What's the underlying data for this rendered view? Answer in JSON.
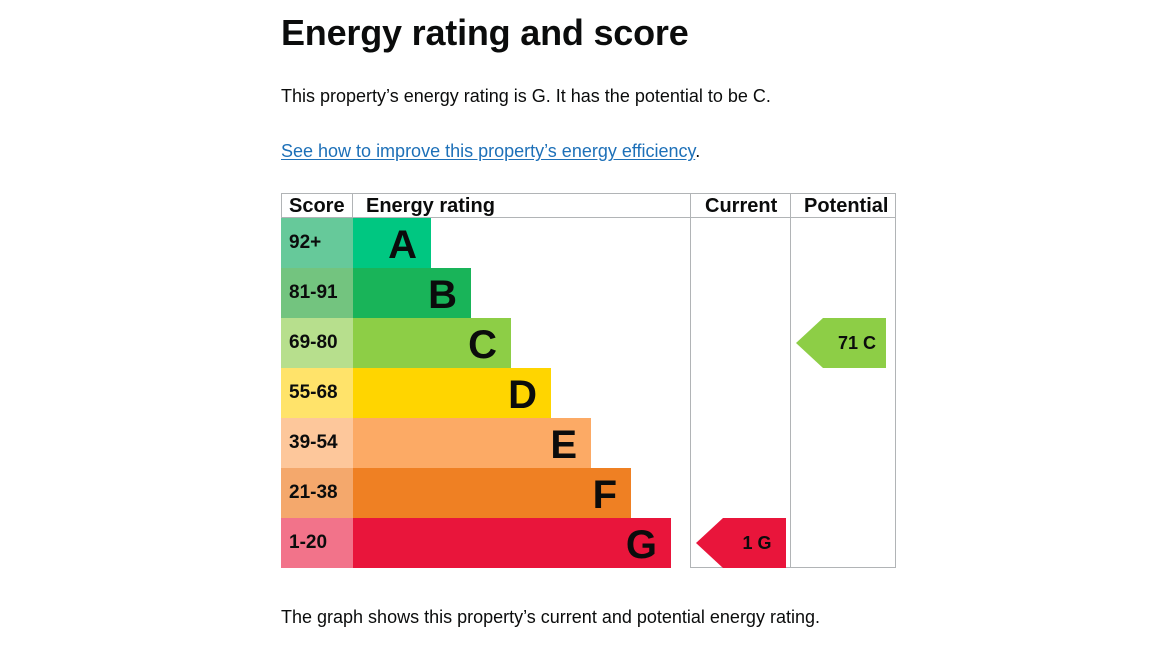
{
  "title": "Energy rating and score",
  "summary": "This property’s energy rating is G. It has the potential to be C.",
  "improve_link": "See how to improve this property’s energy efficiency",
  "improve_suffix": ".",
  "caption": "The graph shows this property’s current and potential energy rating.",
  "chart_data": {
    "type": "bar",
    "headers": {
      "score": "Score",
      "rating": "Energy rating",
      "current": "Current",
      "potential": "Potential"
    },
    "bands": [
      {
        "letter": "A",
        "score_range": "92+",
        "color": "#008054",
        "score_color": "#66c99a",
        "bar_color": "#00c781"
      },
      {
        "letter": "B",
        "score_range": "81-91",
        "color": "#19b459",
        "score_color": "#73c47f",
        "bar_color": "#19b459"
      },
      {
        "letter": "C",
        "score_range": "69-80",
        "color": "#8dce46",
        "score_color": "#b7df8d",
        "bar_color": "#8dce46"
      },
      {
        "letter": "D",
        "score_range": "55-68",
        "color": "#ffd500",
        "score_color": "#ffe36a",
        "bar_color": "#ffd500"
      },
      {
        "letter": "E",
        "score_range": "39-54",
        "color": "#fcaa65",
        "score_color": "#fdc79b",
        "bar_color": "#fcaa65"
      },
      {
        "letter": "F",
        "score_range": "21-38",
        "color": "#ef8023",
        "score_color": "#f4a86c",
        "bar_color": "#ef8023"
      },
      {
        "letter": "G",
        "score_range": "1-20",
        "color": "#e9153b",
        "score_color": "#f2738a",
        "bar_color": "#e9153b"
      }
    ],
    "current": {
      "score": 1,
      "band": "G",
      "label": "1 G",
      "color": "#e9153b"
    },
    "potential": {
      "score": 71,
      "band": "C",
      "label": "71 C",
      "color": "#8dce46"
    }
  }
}
